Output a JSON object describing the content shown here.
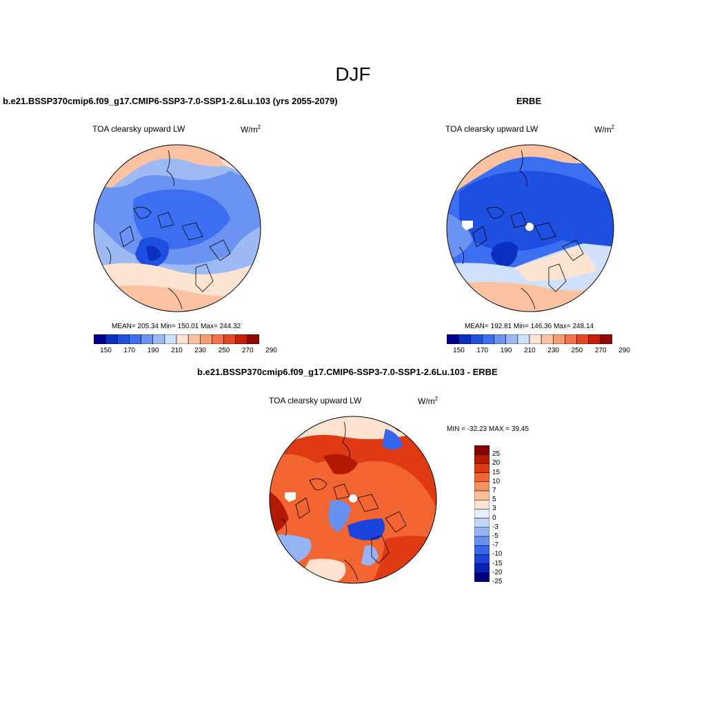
{
  "figure": {
    "title": "DJF"
  },
  "panels": [
    {
      "id": "model",
      "case_title": "b.e21.BSSP370cmip6.f09_g17.CMIP6-SSP3-7.0-SSP1-2.6Lu.103 (yrs 2055-2079)",
      "variable_label": "TOA clearsky upward LW",
      "units": "W/m",
      "units_exp": "2",
      "stats": "MEAN= 205.34  Min= 150.01  Max= 244.32"
    },
    {
      "id": "obs",
      "case_title": "ERBE",
      "variable_label": "TOA clearsky upward LW",
      "units": "W/m",
      "units_exp": "2",
      "stats": "MEAN= 192.81  Min= 146.36  Max= 248.14"
    },
    {
      "id": "diff",
      "case_title": "b.e21.BSSP370cmip6.f09_g17.CMIP6-SSP3-7.0-SSP1-2.6Lu.103 - ERBE",
      "variable_label": "TOA clearsky upward LW",
      "units": "W/m",
      "units_exp": "2",
      "stats": "MIN = -32.23 MAX =  39.45"
    }
  ],
  "abs_colorbar": {
    "colors": [
      "#00008f",
      "#0b2fc0",
      "#1f4fe0",
      "#3b6ef0",
      "#6b93f2",
      "#9dbaf5",
      "#cfe0fb",
      "#fde4d2",
      "#fbc2a2",
      "#f89c74",
      "#f57148",
      "#e84420",
      "#c81d06",
      "#8f0a00"
    ],
    "tick_labels": [
      "150",
      "170",
      "190",
      "210",
      "230",
      "250",
      "270",
      "290"
    ]
  },
  "diff_colorbar": {
    "colors": [
      "#00007a",
      "#0a20b8",
      "#1a44dc",
      "#3466ee",
      "#6690f2",
      "#95b3f5",
      "#c3d6f9",
      "#e4eefc",
      "#fde3cf",
      "#fbbf9c",
      "#f7905f",
      "#f26530",
      "#e03a12",
      "#b31a04",
      "#850600"
    ],
    "labels": [
      "-25",
      "-20",
      "-15",
      "-10",
      "-7",
      "-5",
      "-3",
      "0",
      "3",
      "5",
      "7",
      "10",
      "15",
      "20",
      "25"
    ]
  },
  "map_colors": {
    "land_outline": "#000000",
    "missing": "#ffffff"
  }
}
